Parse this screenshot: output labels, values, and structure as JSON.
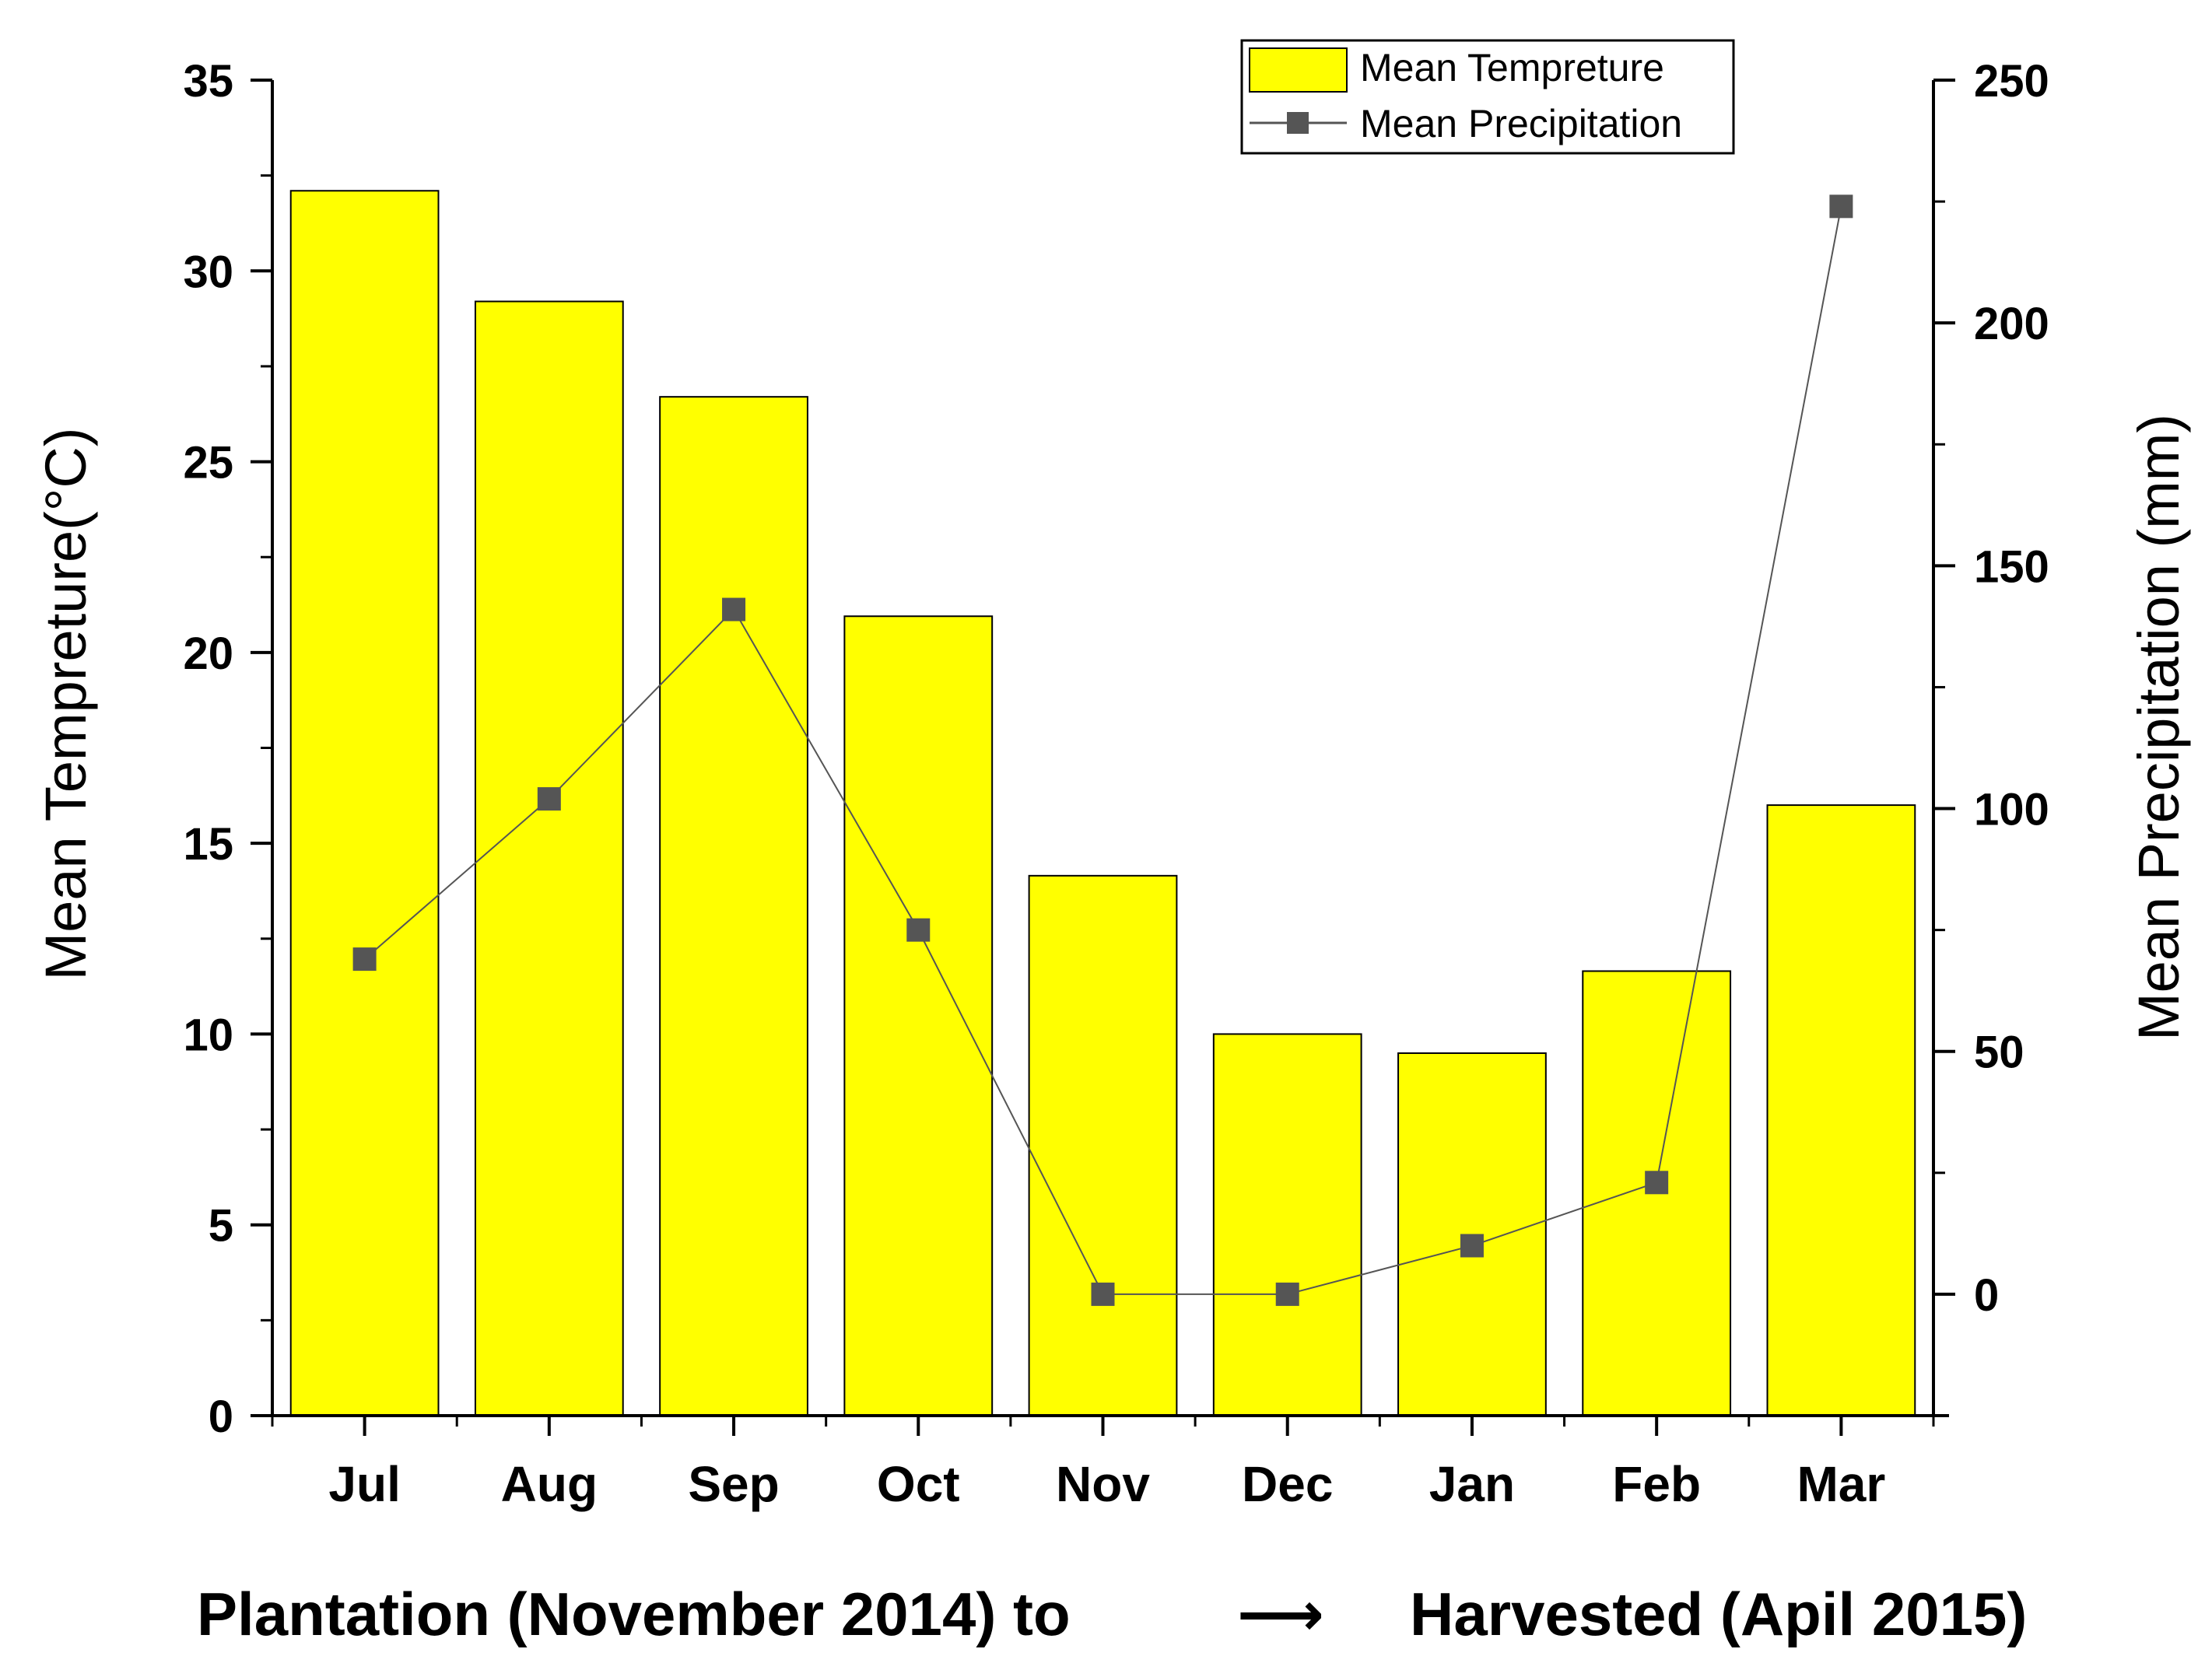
{
  "chart_data": {
    "type": "bar",
    "categories": [
      "Jul",
      "Aug",
      "Sep",
      "Oct",
      "Nov",
      "Dec",
      "Jan",
      "Feb",
      "Mar"
    ],
    "series": [
      {
        "name": "Mean Tempreture",
        "kind": "bar",
        "axis": "left",
        "color": "#ffff00",
        "values": [
          32.1,
          29.2,
          26.7,
          20.95,
          14.15,
          10.0,
          9.5,
          11.65,
          16.0
        ]
      },
      {
        "name": "Mean Precipitation",
        "kind": "line",
        "axis": "right",
        "color": "#555555",
        "values": [
          69,
          102,
          141,
          75,
          0,
          0,
          10,
          23,
          224
        ]
      }
    ],
    "xlabel": "Plantation (November 2014) to",
    "xlabel_arrow": "⟶",
    "xlabel_end": "Harvested (Apil 2015)",
    "ylabel": "Mean Tempreture(°C)",
    "ylabel_right": "Mean Precipitation (mm)",
    "ylim": [
      0,
      35
    ],
    "yticks": [
      "0",
      "5",
      "10",
      "15",
      "20",
      "25",
      "30",
      "35"
    ],
    "ylim_right": [
      -25,
      250
    ],
    "yticks_right": [
      "0",
      "50",
      "100",
      "150",
      "200",
      "250"
    ],
    "legend_position": "top-right",
    "grid": false
  }
}
